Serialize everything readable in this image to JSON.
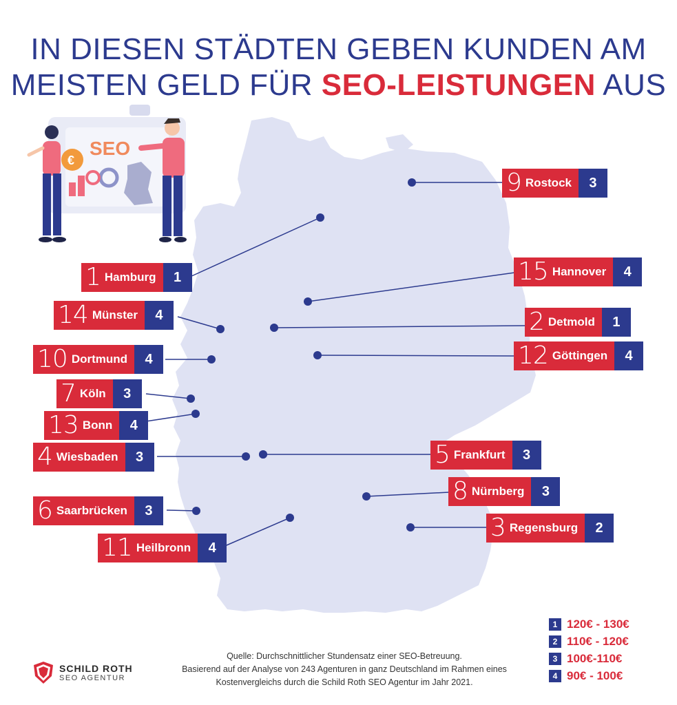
{
  "title": {
    "line1": "IN DIESEN STÄDTEN GEBEN KUNDEN AM",
    "line2_start": "MEISTEN GELD FÜR ",
    "line2_highlight": "SEO-LEISTUNGEN",
    "line2_end": " AUS"
  },
  "illustration": {
    "screen_text": "SEO",
    "currency_symbol": "€"
  },
  "colors": {
    "rank_box": "#d92b3a",
    "tier_box": "#2c3a8e",
    "map_fill": "#dfe2f3",
    "title": "#2c3a8e",
    "highlight": "#d92b3a"
  },
  "cities": [
    {
      "rank": "1",
      "city": "Hamburg",
      "tier": "1"
    },
    {
      "rank": "2",
      "city": "Detmold",
      "tier": "1"
    },
    {
      "rank": "3",
      "city": "Regensburg",
      "tier": "2"
    },
    {
      "rank": "4",
      "city": "Wiesbaden",
      "tier": "3"
    },
    {
      "rank": "5",
      "city": "Frankfurt",
      "tier": "3"
    },
    {
      "rank": "6",
      "city": "Saarbrücken",
      "tier": "3"
    },
    {
      "rank": "7",
      "city": "Köln",
      "tier": "3"
    },
    {
      "rank": "8",
      "city": "Nürnberg",
      "tier": "3"
    },
    {
      "rank": "9",
      "city": "Rostock",
      "tier": "3"
    },
    {
      "rank": "10",
      "city": "Dortmund",
      "tier": "4"
    },
    {
      "rank": "11",
      "city": "Heilbronn",
      "tier": "4"
    },
    {
      "rank": "12",
      "city": "Göttingen",
      "tier": "4"
    },
    {
      "rank": "13",
      "city": "Bonn",
      "tier": "4"
    },
    {
      "rank": "14",
      "city": "Münster",
      "tier": "4"
    },
    {
      "rank": "15",
      "city": "Hannover",
      "tier": "4"
    }
  ],
  "legend": [
    {
      "tier": "1",
      "range": "120€ - 130€"
    },
    {
      "tier": "2",
      "range": "110€ - 120€"
    },
    {
      "tier": "3",
      "range": "100€-110€"
    },
    {
      "tier": "4",
      "range": "90€ - 100€"
    }
  ],
  "source": {
    "line1": "Quelle: Durchschnittlicher Stundensatz einer SEO-Betreuung.",
    "line2": "Basierend auf der Analyse von 243 Agenturen in ganz Deutschland im Rahmen eines",
    "line3": "Kostenvergleichs durch die Schild Roth SEO Agentur im Jahr 2021."
  },
  "logo": {
    "name": "SCHILD ROTH",
    "sub": "SEO AGENTUR"
  }
}
